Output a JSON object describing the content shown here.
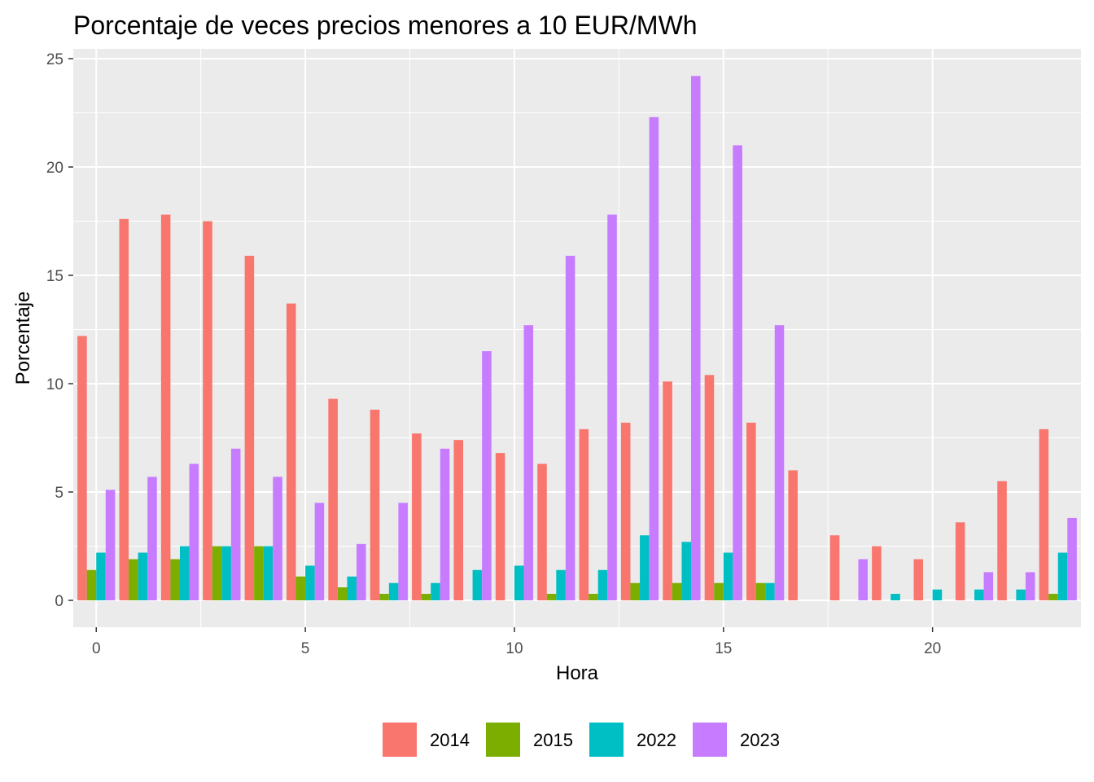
{
  "chart_data": {
    "type": "bar",
    "title": "Porcentaje de veces precios menores a 10 EUR/MWh",
    "xlabel": "Hora",
    "ylabel": "Porcentaje",
    "xlim": [
      -0.5,
      23.5
    ],
    "ylim": [
      0,
      25
    ],
    "xticks": [
      0,
      5,
      10,
      15,
      20
    ],
    "yticks": [
      0,
      5,
      10,
      15,
      20,
      25
    ],
    "grid": true,
    "legend_position": "bottom",
    "x": [
      0,
      1,
      2,
      3,
      4,
      5,
      6,
      7,
      8,
      9,
      10,
      11,
      12,
      13,
      14,
      15,
      16,
      17,
      18,
      19,
      20,
      21,
      22,
      23
    ],
    "series": [
      {
        "name": "2014",
        "color": "#F8766D",
        "values": [
          12.2,
          17.6,
          17.8,
          17.5,
          15.9,
          13.7,
          9.3,
          8.8,
          7.7,
          7.4,
          6.8,
          6.3,
          7.9,
          8.2,
          10.1,
          10.4,
          8.2,
          6.0,
          3.0,
          2.5,
          1.9,
          3.6,
          5.5,
          7.9
        ]
      },
      {
        "name": "2015",
        "color": "#7CAE00",
        "values": [
          1.4,
          1.9,
          1.9,
          2.5,
          2.5,
          1.1,
          0.6,
          0.3,
          0.3,
          0,
          0,
          0.3,
          0.3,
          0.8,
          0.8,
          0.8,
          0.8,
          0,
          0,
          0,
          0,
          0,
          0,
          0.3
        ]
      },
      {
        "name": "2022",
        "color": "#00BFC4",
        "values": [
          2.2,
          2.2,
          2.5,
          2.5,
          2.5,
          1.6,
          1.1,
          0.8,
          0.8,
          1.4,
          1.6,
          1.4,
          1.4,
          3.0,
          2.7,
          2.2,
          0.8,
          0,
          0,
          0.3,
          0.5,
          0.5,
          0.5,
          2.2
        ]
      },
      {
        "name": "2023",
        "color": "#C77CFF",
        "values": [
          5.1,
          5.7,
          6.3,
          7.0,
          5.7,
          4.5,
          2.6,
          4.5,
          7.0,
          11.5,
          12.7,
          15.9,
          17.8,
          22.3,
          24.2,
          21.0,
          12.7,
          0,
          1.9,
          0,
          0,
          1.3,
          1.3,
          3.8
        ]
      }
    ]
  }
}
